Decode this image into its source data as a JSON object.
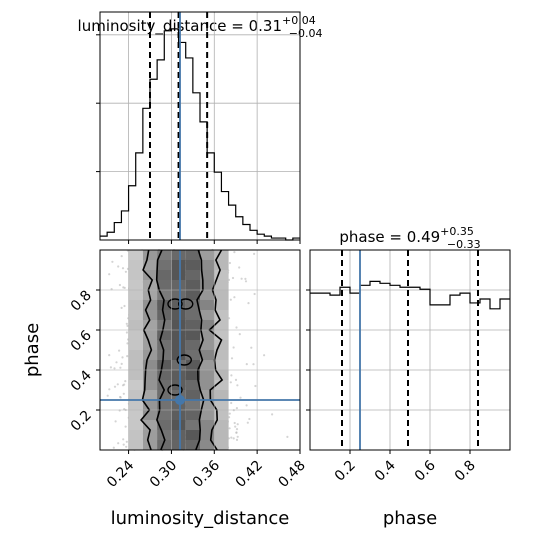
{
  "chart_data": {
    "type": "corner",
    "truth_color": "#4477aa",
    "panels": {
      "ld_hist": {
        "type": "histogram",
        "title_param": "luminosity_distance",
        "title_value": "0.31",
        "title_plus": "+0.04",
        "title_minus": "−0.04",
        "x_range": [
          0.2,
          0.48
        ],
        "bin_edges": [
          0.2,
          0.21,
          0.22,
          0.23,
          0.24,
          0.25,
          0.26,
          0.27,
          0.28,
          0.29,
          0.3,
          0.31,
          0.32,
          0.33,
          0.34,
          0.35,
          0.36,
          0.37,
          0.38,
          0.39,
          0.4,
          0.41,
          0.42,
          0.43,
          0.44,
          0.45,
          0.46,
          0.47,
          0.48
        ],
        "counts": [
          2,
          4,
          9,
          15,
          28,
          45,
          68,
          83,
          93,
          108,
          109,
          102,
          94,
          76,
          61,
          45,
          35,
          25,
          18,
          12,
          8,
          5,
          3,
          2,
          1,
          1,
          0,
          1
        ],
        "quantiles": [
          0.27,
          0.31,
          0.35
        ],
        "truth": 0.312
      },
      "phase_hist": {
        "type": "histogram",
        "title_param": "phase",
        "title_value": "0.49",
        "title_plus": "+0.35",
        "title_minus": "−0.33",
        "x_range": [
          0.0,
          1.0
        ],
        "bin_edges": [
          0.0,
          0.05,
          0.1,
          0.15,
          0.2,
          0.25,
          0.3,
          0.35,
          0.4,
          0.45,
          0.5,
          0.55,
          0.6,
          0.65,
          0.7,
          0.75,
          0.8,
          0.85,
          0.9,
          0.95,
          1.0
        ],
        "counts": [
          80,
          80,
          79,
          83,
          80,
          84,
          86,
          85,
          84,
          83,
          83,
          82,
          74,
          74,
          79,
          80,
          75,
          77,
          72,
          77
        ],
        "quantiles": [
          0.16,
          0.49,
          0.84
        ],
        "truth": 0.25
      },
      "joint": {
        "type": "2d-density",
        "x_param": "luminosity_distance",
        "y_param": "phase",
        "x_range": [
          0.2,
          0.48
        ],
        "y_range": [
          0.0,
          1.0
        ],
        "truth": [
          0.312,
          0.25
        ]
      }
    },
    "axes": {
      "ld_ticks": [
        "0.24",
        "0.30",
        "0.36",
        "0.42",
        "0.48"
      ],
      "ld_tick_values": [
        0.24,
        0.3,
        0.36,
        0.42,
        0.48
      ],
      "phase_ticks": [
        "0.2",
        "0.4",
        "0.6",
        "0.8"
      ],
      "phase_tick_values": [
        0.2,
        0.4,
        0.6,
        0.8
      ],
      "xlabel_left": "luminosity_distance",
      "xlabel_right": "phase",
      "ylabel": "phase"
    },
    "grid": true
  }
}
